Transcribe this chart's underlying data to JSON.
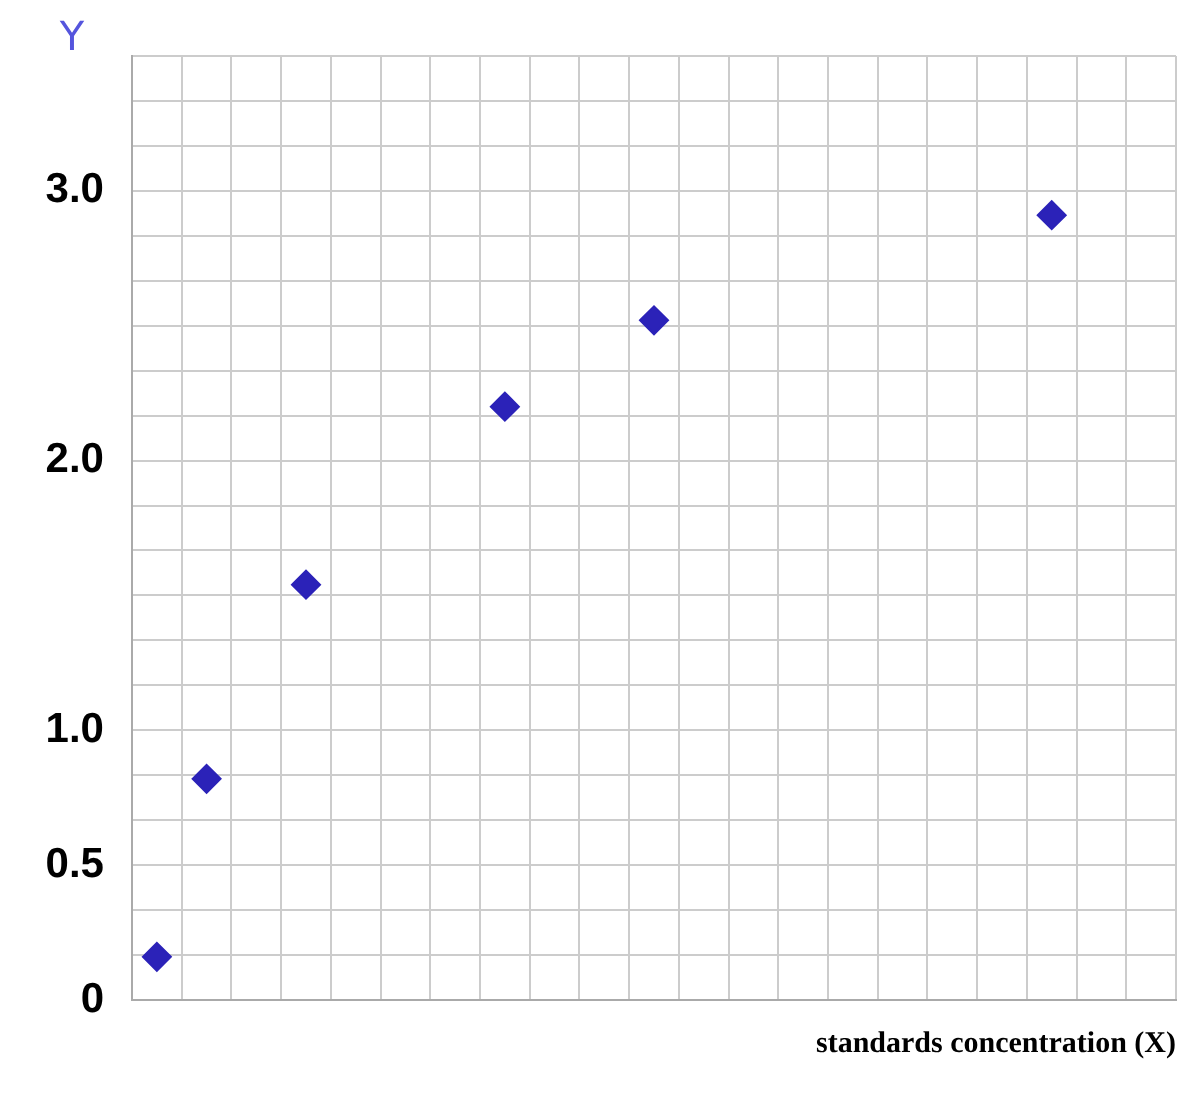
{
  "chart_data": {
    "type": "scatter",
    "xlabel": "standards concentration (X)",
    "ylabel": "Y",
    "categories": [
      null,
      null,
      null,
      null,
      null,
      null,
      null,
      null,
      null,
      null,
      null,
      null,
      null,
      null,
      null,
      null,
      null,
      null,
      null,
      null,
      null
    ],
    "series": [
      {
        "color": "#2b22b8",
        "values": [
          0.16,
          0.82,
          null,
          1.54,
          null,
          null,
          null,
          2.2,
          null,
          null,
          2.52,
          null,
          null,
          null,
          null,
          null,
          null,
          null,
          2.91,
          null,
          null
        ]
      }
    ],
    "ylim": [
      0,
      3.5
    ],
    "yticks": [
      {
        "value": 0,
        "label": "0"
      },
      {
        "value": 0.167,
        "label": null
      },
      {
        "value": 0.333,
        "label": null
      },
      {
        "value": 0.5,
        "label": "0.5"
      },
      {
        "value": 0.667,
        "label": null
      },
      {
        "value": 0.833,
        "label": null
      },
      {
        "value": 1,
        "label": "1.0"
      },
      {
        "value": 1.167,
        "label": null
      },
      {
        "value": 1.333,
        "label": null
      },
      {
        "value": 1.5,
        "label": null
      },
      {
        "value": 1.667,
        "label": null
      },
      {
        "value": 1.833,
        "label": null
      },
      {
        "value": 2,
        "label": "2.0"
      },
      {
        "value": 2.167,
        "label": null
      },
      {
        "value": 2.333,
        "label": null
      },
      {
        "value": 2.5,
        "label": null
      },
      {
        "value": 2.667,
        "label": null
      },
      {
        "value": 2.833,
        "label": null
      },
      {
        "value": 3,
        "label": "3.0"
      },
      {
        "value": 3.167,
        "label": null
      },
      {
        "value": 3.333,
        "label": null
      },
      {
        "value": 3.5,
        "label": null
      }
    ],
    "tick_labels": "y",
    "grid": true,
    "marker": "diamond"
  }
}
